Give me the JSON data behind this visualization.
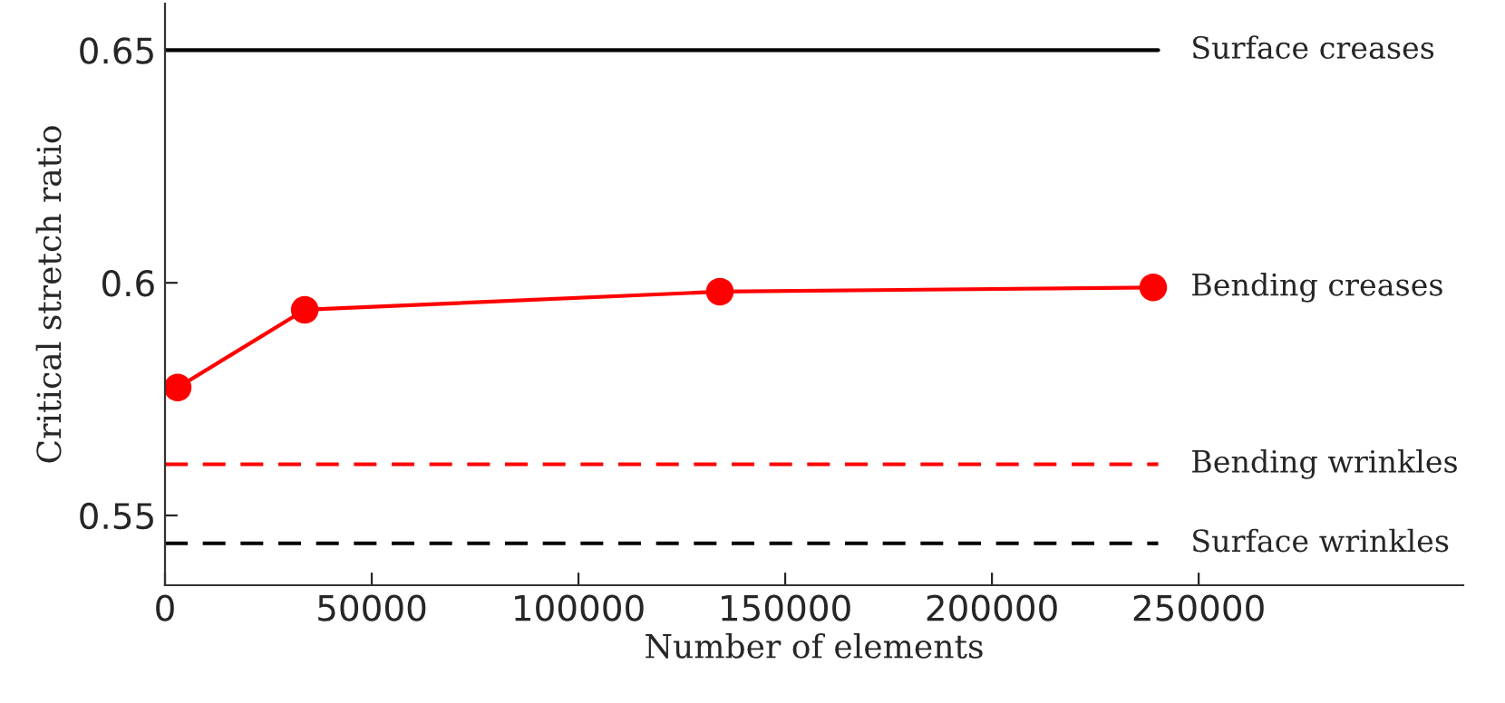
{
  "chart_data": {
    "type": "line",
    "xlabel": "Number of elements",
    "ylabel": "Critical stretch ratio",
    "x": [
      3070,
      33800,
      134200,
      239000
    ],
    "series": [
      {
        "color": "#ff0000",
        "values": [
          0.5775,
          0.5942,
          0.5981,
          0.599
        ]
      }
    ],
    "annotations": [
      "Bending creases"
    ],
    "marker": "circle",
    "line_style": "solid",
    "xlim": [
      0,
      314000
    ],
    "xticks": [
      0,
      50000,
      100000,
      150000,
      200000,
      250000
    ],
    "ylim": [
      0.535,
      0.66
    ],
    "yticks": [
      0.55,
      0.6,
      0.65
    ],
    "ref_lines": [
      {
        "axis": "y",
        "value": 0.65,
        "label": "Surface creases",
        "color": "#000000",
        "line_style": "solid"
      },
      {
        "axis": "y",
        "value": 0.561,
        "label": "Bending wrinkles",
        "color": "#ff0000",
        "line_style": "dashed"
      },
      {
        "axis": "y",
        "value": 0.544,
        "label": "Surface wrinkles",
        "color": "#000000",
        "line_style": "dashed"
      }
    ],
    "grid": false,
    "legend": false
  }
}
